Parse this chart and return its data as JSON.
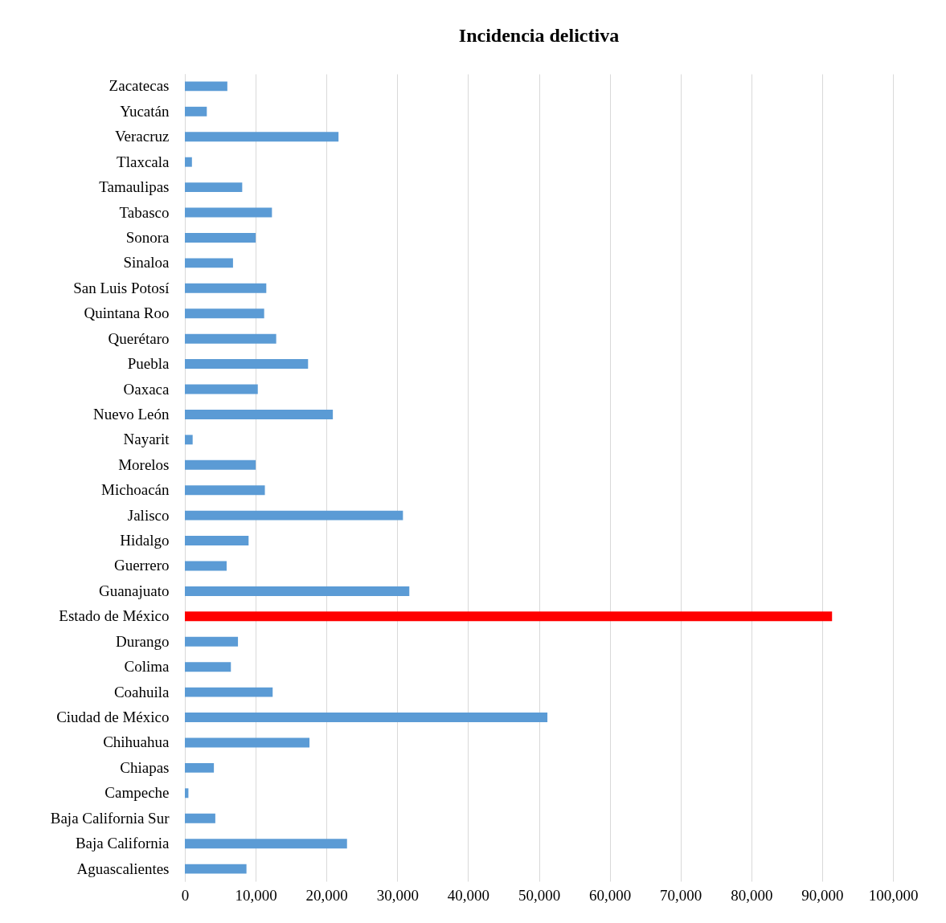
{
  "chart_data": {
    "type": "bar",
    "orientation": "horizontal",
    "title": "Incidencia delictiva",
    "categories": [
      "Zacatecas",
      "Yucatán",
      "Veracruz",
      "Tlaxcala",
      "Tamaulipas",
      "Tabasco",
      "Sonora",
      "Sinaloa",
      "San Luis Potosí",
      "Quintana Roo",
      "Querétaro",
      "Puebla",
      "Oaxaca",
      "Nuevo León",
      "Nayarit",
      "Morelos",
      "Michoacán",
      "Jalisco",
      "Hidalgo",
      "Guerrero",
      "Guanajuato",
      "Estado de México",
      "Durango",
      "Colima",
      "Coahuila",
      "Ciudad de México",
      "Chihuahua",
      "Chiapas",
      "Campeche",
      "Baja California Sur",
      "Baja California",
      "Aguascalientes"
    ],
    "values": [
      6000,
      3100,
      21700,
      1000,
      8100,
      12300,
      10000,
      6800,
      11500,
      11200,
      12900,
      17400,
      10300,
      20900,
      1100,
      10000,
      11300,
      30800,
      9000,
      5900,
      31700,
      91400,
      7500,
      6500,
      12400,
      51200,
      17600,
      4100,
      500,
      4300,
      22900,
      8700
    ],
    "colors": [
      "#5b9bd5",
      "#5b9bd5",
      "#5b9bd5",
      "#5b9bd5",
      "#5b9bd5",
      "#5b9bd5",
      "#5b9bd5",
      "#5b9bd5",
      "#5b9bd5",
      "#5b9bd5",
      "#5b9bd5",
      "#5b9bd5",
      "#5b9bd5",
      "#5b9bd5",
      "#5b9bd5",
      "#5b9bd5",
      "#5b9bd5",
      "#5b9bd5",
      "#5b9bd5",
      "#5b9bd5",
      "#5b9bd5",
      "#ff0000",
      "#5b9bd5",
      "#5b9bd5",
      "#5b9bd5",
      "#5b9bd5",
      "#5b9bd5",
      "#5b9bd5",
      "#5b9bd5",
      "#5b9bd5",
      "#5b9bd5",
      "#5b9bd5"
    ],
    "xlim": [
      0,
      100000
    ],
    "xticks": [
      0,
      {
        "value": 10000,
        "label": "10,000"
      },
      {
        "value": 20000,
        "label": "20,000"
      },
      {
        "value": 30000,
        "label": "30,000"
      },
      {
        "value": 40000,
        "label": "40,000"
      },
      {
        "value": 50000,
        "label": "50,000"
      },
      {
        "value": 60000,
        "label": "60,000"
      },
      {
        "value": 70000,
        "label": "70,000"
      },
      {
        "value": 80000,
        "label": "80,000"
      },
      {
        "value": 90000,
        "label": "90,000"
      },
      {
        "value": 100000,
        "label": "100,000"
      }
    ],
    "grid": "x"
  }
}
